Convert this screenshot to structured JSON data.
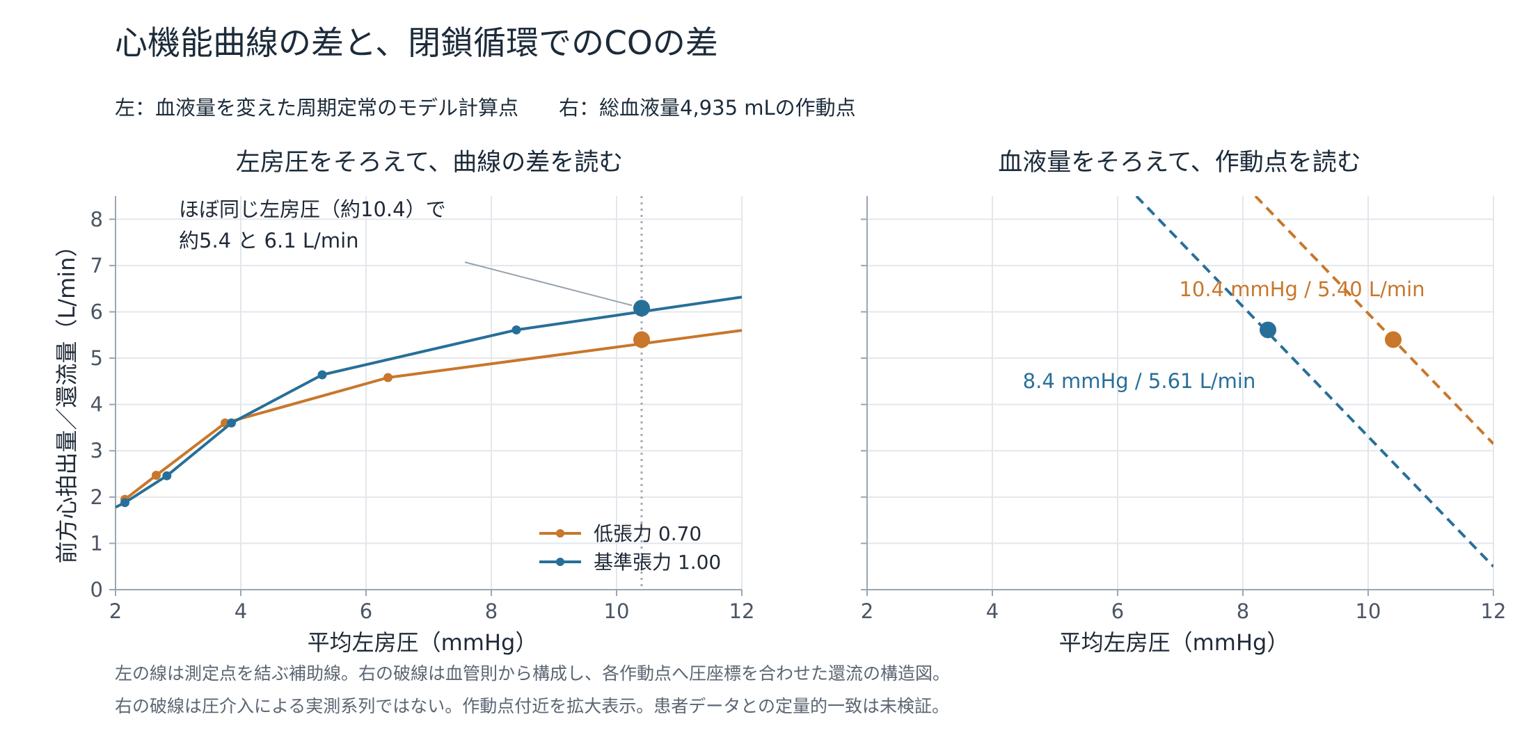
{
  "header": {
    "title": "心機能曲線の差と、閉鎖循環でのCOの差",
    "subtitle": "左：血液量を変えた周期定常のモデル計算点　　右：総血液量4,935 mLの作動点"
  },
  "colors": {
    "orange": "#c8772b",
    "blue": "#276f99",
    "grid": "#e3e7ec",
    "axis": "#9aa5b1",
    "text": "#1c2b3a"
  },
  "chart_data": [
    {
      "type": "line",
      "title": "左房圧をそろえて、曲線の差を読む",
      "xlabel": "平均左房圧（mmHg）",
      "ylabel": "前方心拍出量／還流量（L/min）",
      "xlim": [
        2,
        12
      ],
      "ylim": [
        0,
        8.5
      ],
      "xticks": [
        2,
        4,
        6,
        8,
        10,
        12
      ],
      "yticks": [
        0,
        1,
        2,
        3,
        4,
        5,
        6,
        7,
        8
      ],
      "grid": true,
      "legend_position": "bottom-right",
      "series": [
        {
          "name": "低張力 0.70",
          "color": "#c8772b",
          "points": [
            [
              2.15,
              1.95
            ],
            [
              2.65,
              2.47
            ],
            [
              3.75,
              3.6
            ],
            [
              6.35,
              4.58
            ],
            [
              12.0,
              5.6
            ]
          ],
          "markers": [
            [
              2.15,
              1.95
            ],
            [
              2.65,
              2.47
            ],
            [
              3.75,
              3.6
            ],
            [
              6.35,
              4.58
            ]
          ],
          "highlight": [
            10.4,
            5.4
          ]
        },
        {
          "name": "基準張力 1.00",
          "color": "#276f99",
          "points": [
            [
              2.0,
              1.78
            ],
            [
              2.15,
              1.88
            ],
            [
              2.82,
              2.46
            ],
            [
              3.85,
              3.6
            ],
            [
              5.3,
              4.64
            ],
            [
              8.4,
              5.61
            ],
            [
              12.0,
              6.32
            ]
          ],
          "markers": [
            [
              2.15,
              1.88
            ],
            [
              2.82,
              2.46
            ],
            [
              3.85,
              3.6
            ],
            [
              5.3,
              4.64
            ],
            [
              8.4,
              5.61
            ]
          ],
          "highlight": [
            10.4,
            6.08
          ]
        }
      ],
      "reference_line_x": 10.4,
      "annotation": {
        "line1": "ほぼ同じ左房圧（約10.4）で",
        "line2": "約5.4 と 6.1 L/min"
      }
    },
    {
      "type": "line",
      "title": "血液量をそろえて、作動点を読む",
      "xlabel": "平均左房圧（mmHg）",
      "ylabel": "",
      "xlim": [
        2,
        12
      ],
      "ylim": [
        0,
        8.5
      ],
      "xticks": [
        2,
        4,
        6,
        8,
        10,
        12
      ],
      "grid": true,
      "series": [
        {
          "color": "#276f99",
          "style": "dashed",
          "points": [
            [
              6.3,
              8.5
            ],
            [
              12.0,
              0.5
            ]
          ],
          "operating_point": [
            8.4,
            5.61
          ],
          "label": "8.4 mmHg / 5.61 L/min"
        },
        {
          "color": "#c8772b",
          "style": "dashed",
          "points": [
            [
              8.2,
              8.5
            ],
            [
              12.0,
              3.15
            ]
          ],
          "operating_point": [
            10.4,
            5.4
          ],
          "label": "10.4 mmHg / 5.40 L/min"
        }
      ]
    }
  ],
  "footnotes": {
    "line1": "左の線は測定点を結ぶ補助線。右の破線は血管則から構成し、各作動点へ圧座標を合わせた還流の構造図。",
    "line2": "右の破線は圧介入による実測系列ではない。作動点付近を拡大表示。患者データとの定量的一致は未検証。"
  }
}
